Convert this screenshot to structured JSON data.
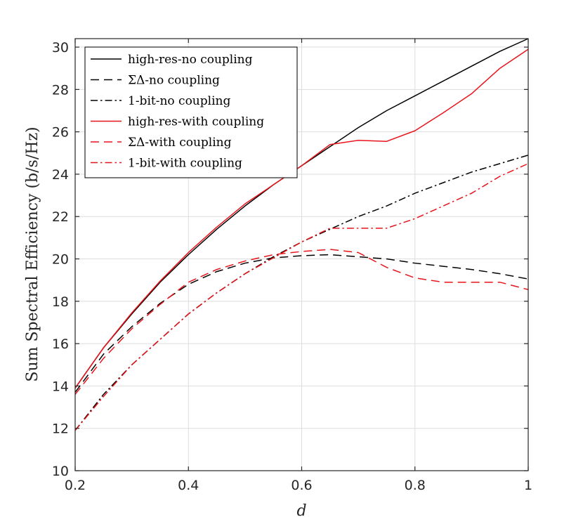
{
  "chart_data": {
    "type": "line",
    "xlabel": "d",
    "ylabel": "Sum Spectral Efficiency (b/s/Hz)",
    "xlim": [
      0.2,
      1
    ],
    "ylim": [
      10,
      30.4
    ],
    "xticks": [
      0.2,
      0.4,
      0.6,
      0.8,
      1
    ],
    "xtick_labels": [
      "0.2",
      "0.4",
      "0.6",
      "0.8",
      "1"
    ],
    "yticks": [
      10,
      12,
      14,
      16,
      18,
      20,
      22,
      24,
      26,
      28,
      30
    ],
    "ytick_labels": [
      "10",
      "12",
      "14",
      "16",
      "18",
      "20",
      "22",
      "24",
      "26",
      "28",
      "30"
    ],
    "grid": true,
    "legend_position": "top-left",
    "x": [
      0.2,
      0.25,
      0.3,
      0.35,
      0.4,
      0.45,
      0.5,
      0.55,
      0.6,
      0.65,
      0.7,
      0.75,
      0.8,
      0.85,
      0.9,
      0.95,
      1.0
    ],
    "series": [
      {
        "name": "high-res-no coupling",
        "color": "#000000",
        "dash": "solid",
        "values": [
          13.9,
          15.8,
          17.4,
          18.9,
          20.2,
          21.4,
          22.5,
          23.5,
          24.4,
          25.3,
          26.2,
          27.0,
          27.7,
          28.4,
          29.1,
          29.8,
          30.4
        ]
      },
      {
        "name": "ΣΔ-no coupling",
        "color": "#000000",
        "dash": "dashed",
        "values": [
          13.7,
          15.5,
          16.8,
          17.9,
          18.8,
          19.4,
          19.8,
          20.05,
          20.15,
          20.2,
          20.1,
          20.0,
          19.8,
          19.65,
          19.5,
          19.3,
          19.05
        ]
      },
      {
        "name": "1-bit-no coupling",
        "color": "#000000",
        "dash": "dashdot",
        "values": [
          11.9,
          13.6,
          15.0,
          16.2,
          17.4,
          18.4,
          19.3,
          20.1,
          20.8,
          21.4,
          22.0,
          22.5,
          23.1,
          23.6,
          24.1,
          24.5,
          24.9
        ]
      },
      {
        "name": "high-res-with coupling",
        "color": "#e8141b",
        "dash": "solid",
        "values": [
          13.9,
          15.8,
          17.45,
          18.95,
          20.3,
          21.5,
          22.6,
          23.5,
          24.4,
          25.4,
          25.6,
          25.55,
          26.05,
          26.9,
          27.8,
          29.0,
          29.9
        ]
      },
      {
        "name": "ΣΔ-with coupling",
        "color": "#e8141b",
        "dash": "dashed",
        "values": [
          13.6,
          15.3,
          16.7,
          17.85,
          18.9,
          19.5,
          19.9,
          20.2,
          20.35,
          20.45,
          20.3,
          19.6,
          19.1,
          18.9,
          18.9,
          18.9,
          18.55
        ]
      },
      {
        "name": "1-bit-with coupling",
        "color": "#e8141b",
        "dash": "dashdot",
        "values": [
          11.9,
          13.5,
          15.0,
          16.2,
          17.4,
          18.4,
          19.3,
          20.05,
          20.8,
          21.45,
          21.45,
          21.45,
          21.9,
          22.5,
          23.1,
          23.9,
          24.5
        ]
      }
    ]
  }
}
